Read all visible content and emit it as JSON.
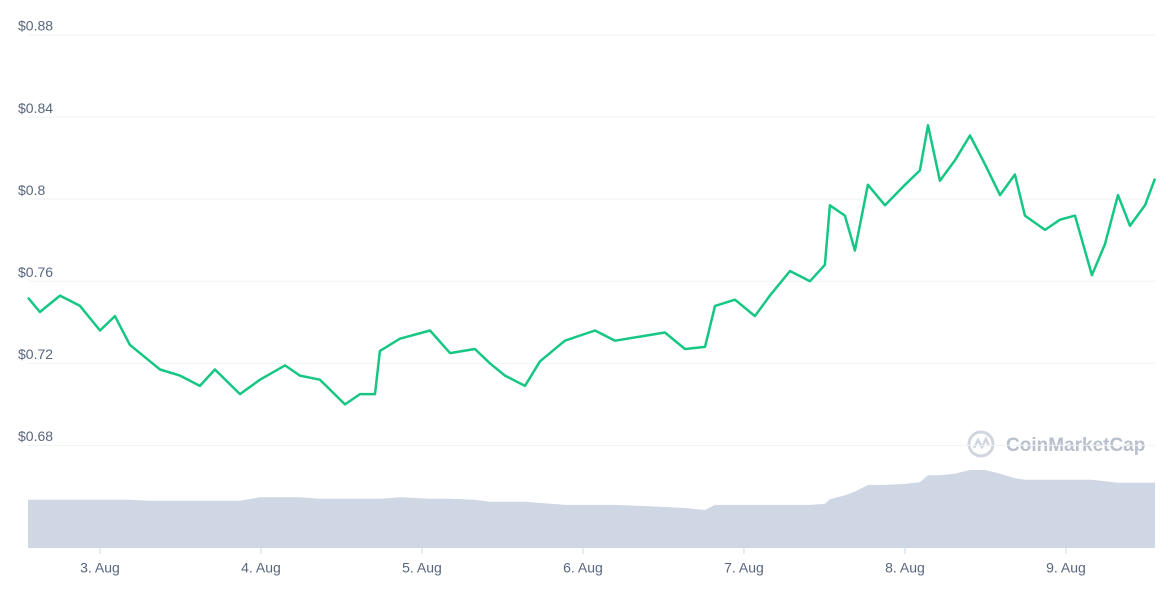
{
  "chart_data": {
    "type": "line",
    "x": [
      2.553,
      2.627,
      2.752,
      2.876,
      3.0,
      3.093,
      3.186,
      3.311,
      3.373,
      3.497,
      3.621,
      3.714,
      3.87,
      3.994,
      4.149,
      4.242,
      4.366,
      4.522,
      4.615,
      4.708,
      4.739,
      4.863,
      5.05,
      5.174,
      5.329,
      5.422,
      5.516,
      5.64,
      5.733,
      5.888,
      6.075,
      6.199,
      6.354,
      6.509,
      6.634,
      6.758,
      6.82,
      6.944,
      7.068,
      7.161,
      7.286,
      7.41,
      7.503,
      7.534,
      7.627,
      7.689,
      7.77,
      7.876,
      8.0,
      8.093,
      8.143,
      8.217,
      8.311,
      8.404,
      8.497,
      8.59,
      8.683,
      8.745,
      8.87,
      8.963,
      9.056,
      9.161,
      9.242,
      9.323,
      9.398,
      9.491,
      9.553
    ],
    "series": [
      {
        "color": "#16c784",
        "values": [
          0.752,
          0.745,
          0.753,
          0.748,
          0.736,
          0.743,
          0.729,
          0.721,
          0.717,
          0.714,
          0.709,
          0.717,
          0.705,
          0.712,
          0.719,
          0.714,
          0.712,
          0.7,
          0.705,
          0.705,
          0.726,
          0.732,
          0.736,
          0.725,
          0.727,
          0.72,
          0.714,
          0.709,
          0.721,
          0.731,
          0.736,
          0.731,
          0.733,
          0.735,
          0.727,
          0.728,
          0.748,
          0.751,
          0.743,
          0.753,
          0.765,
          0.76,
          0.768,
          0.797,
          0.792,
          0.775,
          0.807,
          0.797,
          0.807,
          0.814,
          0.836,
          0.809,
          0.819,
          0.831,
          0.817,
          0.802,
          0.812,
          0.792,
          0.785,
          0.79,
          0.792,
          0.763,
          0.778,
          0.802,
          0.787,
          0.797,
          0.81
        ]
      },
      {
        "color": "#cfd6e4",
        "axis": "y2",
        "values": [
          9.4,
          9.4,
          9.4,
          9.4,
          9.4,
          9.4,
          9.4,
          9.2,
          9.2,
          9.2,
          9.2,
          9.2,
          9.2,
          9.9,
          9.9,
          9.9,
          9.6,
          9.6,
          9.6,
          9.6,
          9.6,
          9.9,
          9.6,
          9.6,
          9.4,
          9.0,
          9.0,
          9.0,
          8.8,
          8.4,
          8.4,
          8.4,
          8.2,
          8.0,
          7.8,
          7.4,
          8.4,
          8.4,
          8.4,
          8.4,
          8.4,
          8.4,
          8.6,
          9.5,
          10.3,
          11.0,
          12.3,
          12.3,
          12.5,
          12.8,
          14.2,
          14.2,
          14.5,
          15.2,
          15.2,
          14.5,
          13.6,
          13.3,
          13.3,
          13.3,
          13.3,
          13.3,
          13.0,
          12.7,
          12.7,
          12.7,
          12.7
        ]
      }
    ],
    "xlim": [
      2.553,
      9.553
    ],
    "xticks": [
      {
        "value": 3,
        "label": "3. Aug"
      },
      {
        "value": 4,
        "label": "4. Aug"
      },
      {
        "value": 5,
        "label": "5. Aug"
      },
      {
        "value": 6,
        "label": "6. Aug"
      },
      {
        "value": 7,
        "label": "7. Aug"
      },
      {
        "value": 8,
        "label": "8. Aug"
      },
      {
        "value": 9,
        "label": "9. Aug"
      }
    ],
    "ylim": [
      0.63,
      0.88
    ],
    "yticks": [
      {
        "value": 0.68,
        "label": "$0.68"
      },
      {
        "value": 0.72,
        "label": "$0.72"
      },
      {
        "value": 0.76,
        "label": "$0.76"
      },
      {
        "value": 0.8,
        "label": "$0.8"
      },
      {
        "value": 0.84,
        "label": "$0.84"
      },
      {
        "value": 0.88,
        "label": "$0.88"
      }
    ],
    "y2lim": [
      0,
      100
    ],
    "grid": true,
    "watermark": "CoinMarketCap"
  }
}
